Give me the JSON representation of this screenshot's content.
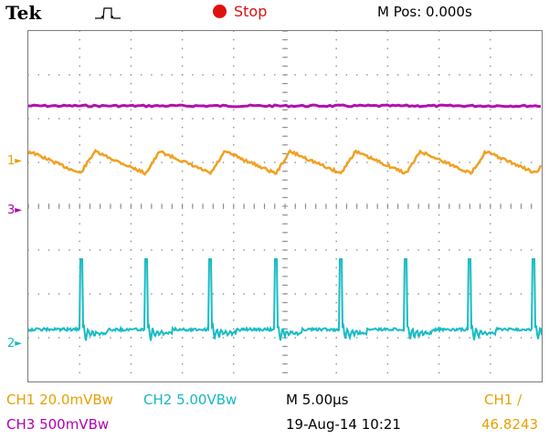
{
  "header": {
    "brand": "Tek",
    "trigger_icon": "pulse-trigger-icon",
    "run_status": "Stop",
    "run_status_color": "#e01010",
    "position": "M Pos: 0.000s"
  },
  "colors": {
    "ch1": "#f0a020",
    "ch2": "#18bcc4",
    "ch3": "#b010b0",
    "grid": "#8a8a8a"
  },
  "markers": {
    "ch1": "1",
    "ch2": "2",
    "ch3": "3",
    "trigger_position": "▼"
  },
  "footer": {
    "ch1_scale": "CH1  20.0mVBw",
    "ch2_scale": "CH2  5.00VBw",
    "ch3_scale": "CH3  500mVBw",
    "timebase": "M 5.00µs",
    "date": "19-Aug-14 10:21",
    "trigger_source": "CH1  ∕",
    "trigger_value": "46.8243"
  }
}
